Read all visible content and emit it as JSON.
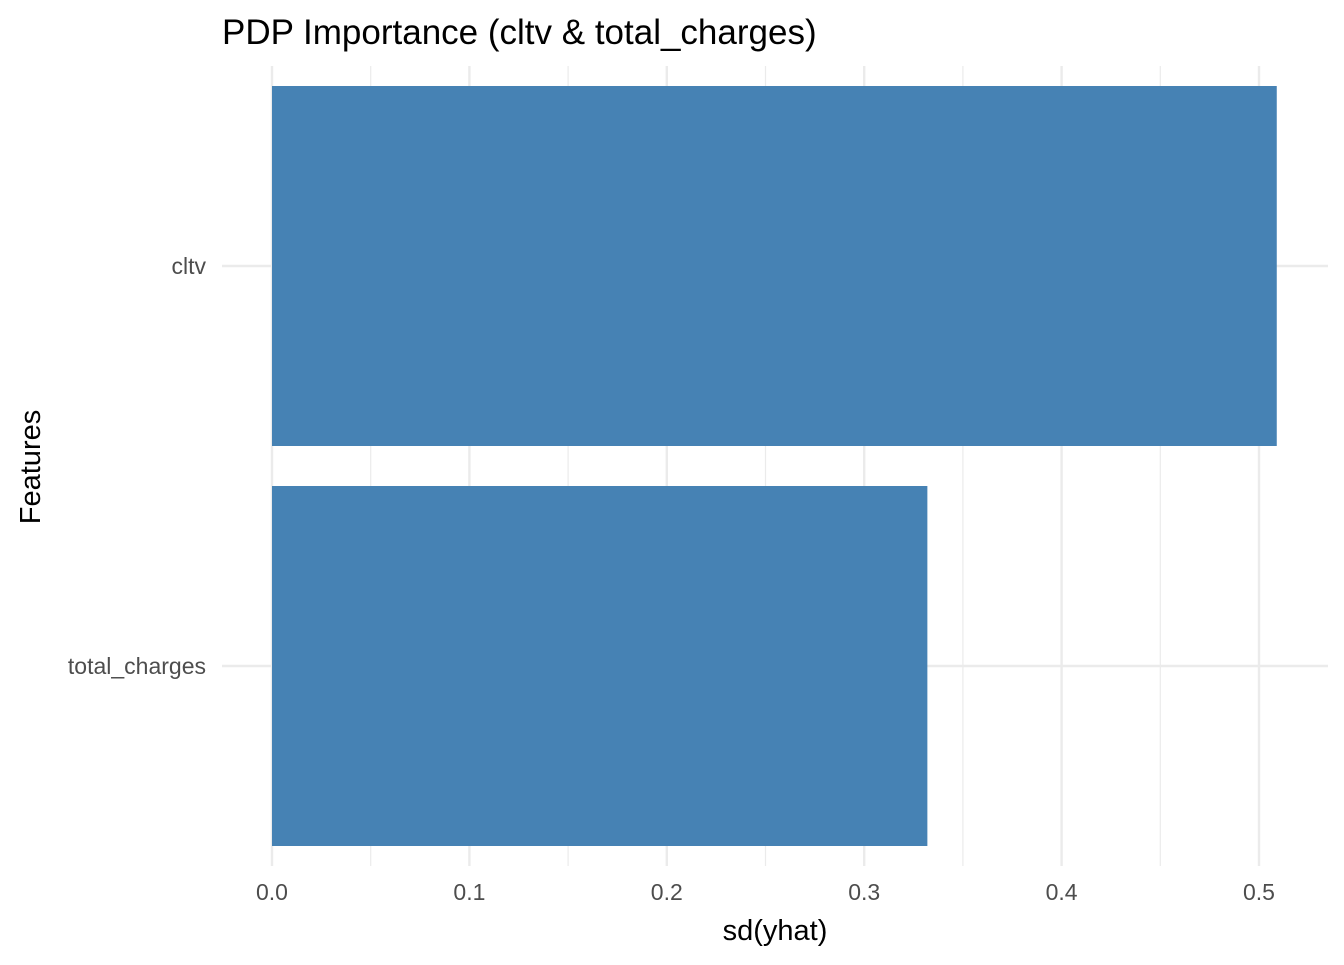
{
  "chart_data": {
    "type": "bar",
    "orientation": "horizontal",
    "title": "PDP Importance (cltv & total_charges)",
    "xlabel": "sd(yhat)",
    "ylabel": "Features",
    "categories": [
      "cltv",
      "total_charges"
    ],
    "values": [
      0.509,
      0.332
    ],
    "xlim": [
      0,
      0.52
    ],
    "x_ticks": [
      0.0,
      0.1,
      0.2,
      0.3,
      0.4,
      0.5
    ],
    "x_tick_labels": [
      "0.0",
      "0.1",
      "0.2",
      "0.3",
      "0.4",
      "0.5"
    ],
    "grid": true,
    "legend": "none",
    "bar_color": "#4682B4",
    "grid_color": "#EBEBEB"
  }
}
